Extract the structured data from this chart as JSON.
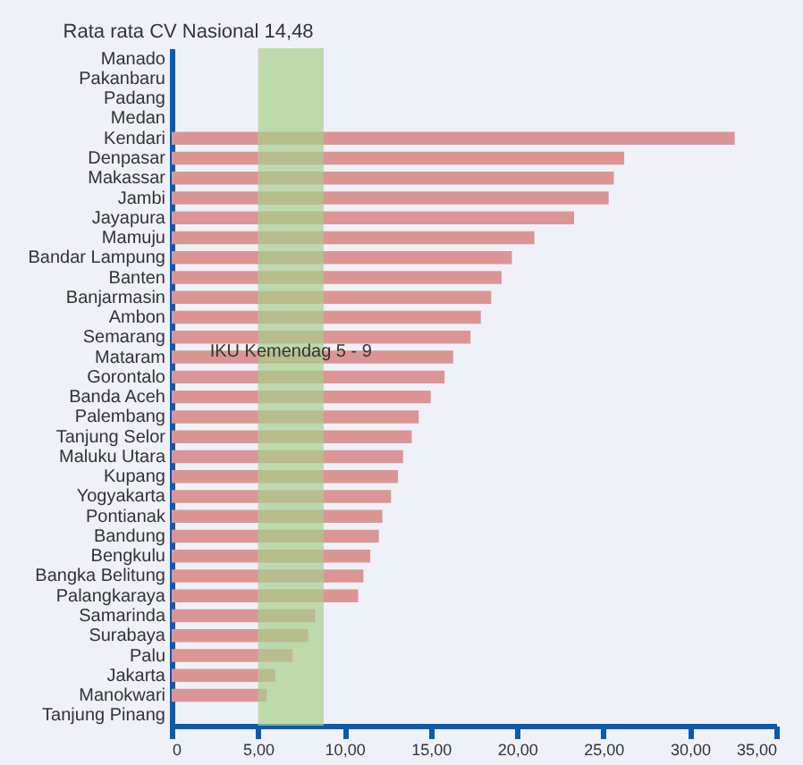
{
  "chart_data": {
    "type": "bar",
    "orientation": "horizontal",
    "title": "Rata rata CV Nasional 14,48",
    "categories": [
      "Manado",
      "Pakanbaru",
      "Padang",
      "Medan",
      "Kendari",
      "Denpasar",
      "Makassar",
      "Jambi",
      "Jayapura",
      "Mamuju",
      "Bandar Lampung",
      "Banten",
      "Banjarmasin",
      "Ambon",
      "Semarang",
      "Mataram",
      "Gorontalo",
      "Banda Aceh",
      "Palembang",
      "Tanjung Selor",
      "Maluku Utara",
      "Kupang",
      "Yogyakarta",
      "Pontianak",
      "Bandung",
      "Bengkulu",
      "Bangka Belitung",
      "Palangkaraya",
      "Samarinda",
      "Surabaya",
      "Palu",
      "Jakarta",
      "Manokwari",
      "Tanjung Pinang"
    ],
    "values": [
      null,
      null,
      null,
      null,
      32.6,
      26.2,
      25.6,
      25.3,
      23.3,
      21.0,
      19.7,
      19.1,
      18.5,
      17.9,
      17.3,
      16.3,
      15.8,
      15.0,
      14.3,
      13.9,
      13.4,
      13.1,
      12.7,
      12.2,
      12.0,
      11.5,
      11.1,
      10.8,
      8.3,
      7.9,
      7.0,
      6.0,
      5.5,
      null
    ],
    "color": "#db9595",
    "xlim": [
      0,
      35
    ],
    "xticks": [
      {
        "value": 0,
        "label": "0"
      },
      {
        "value": 5,
        "label": "5,00"
      },
      {
        "value": 10,
        "label": "10,00"
      },
      {
        "value": 15,
        "label": "15,00"
      },
      {
        "value": 20,
        "label": "20,00"
      },
      {
        "value": 25,
        "label": "25,00"
      },
      {
        "value": 30,
        "label": "30,00"
      },
      {
        "value": 35,
        "label": "35,00"
      }
    ],
    "bands": [
      {
        "axis": "x",
        "from": 5,
        "to": 8.8,
        "label": "IKU Kemendag 5 - 9",
        "color": "#a9cf8c"
      }
    ]
  }
}
